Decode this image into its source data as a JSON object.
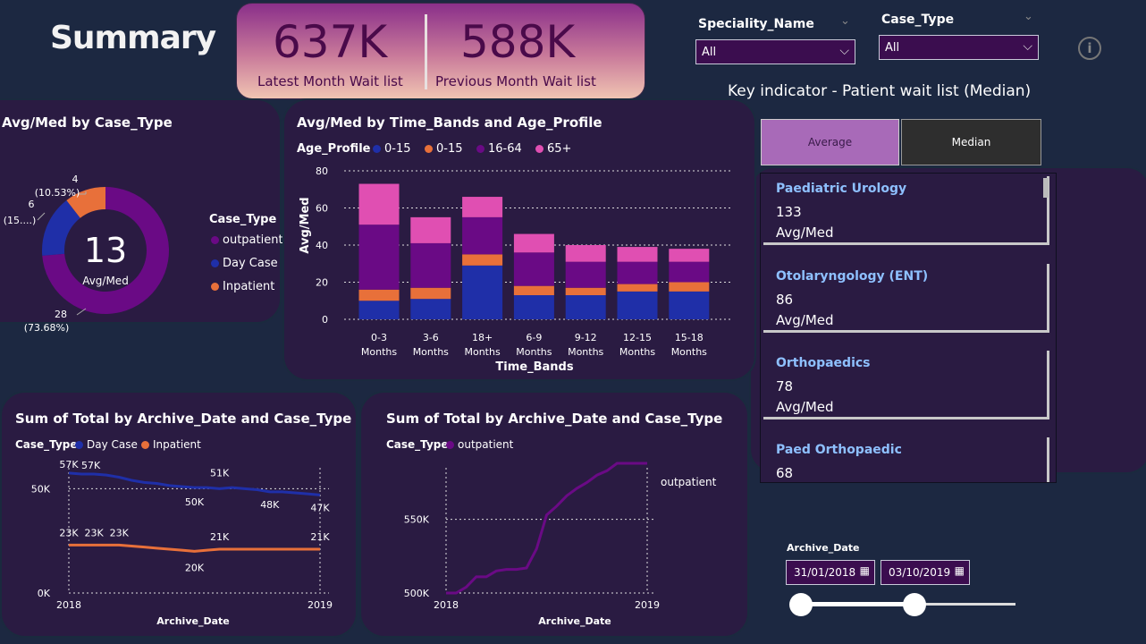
{
  "page": {
    "title": "Summary"
  },
  "kpi": {
    "latest_value": "637K",
    "latest_label": "Latest Month Wait list",
    "previous_value": "588K",
    "previous_label": "Previous Month Wait list"
  },
  "filters": {
    "speciality": {
      "label": "Speciality_Name",
      "value": "All"
    },
    "case_type": {
      "label": "Case_Type",
      "value": "All"
    }
  },
  "info_icon": "info-icon",
  "key_indicator": {
    "title": "Key indicator - Patient wait list (Median)",
    "buttons": {
      "average": "Average",
      "median": "Median"
    },
    "items": [
      {
        "name": "Paediatric Urology",
        "value": "133",
        "sub": "Avg/Med"
      },
      {
        "name": "Otolaryngology (ENT)",
        "value": "86",
        "sub": "Avg/Med"
      },
      {
        "name": "Orthopaedics",
        "value": "78",
        "sub": "Avg/Med"
      },
      {
        "name": "Paed Orthopaedic",
        "value": "68",
        "sub": "Avg/Med"
      }
    ]
  },
  "donut": {
    "title": "Avg/Med by Case_Type",
    "center_value": "13",
    "center_label": "Avg/Med",
    "legend_title": "Case_Type",
    "labels": {
      "inpatient_value": "4",
      "inpatient_pct": "(10.53%)",
      "daycase_value": "6",
      "daycase_pct": "(15....)",
      "outpatient_value": "28",
      "outpatient_pct": "(73.68%)"
    }
  },
  "bar": {
    "title": "Avg/Med by Time_Bands and Age_Profile",
    "legend_title": "Age_Profile",
    "ylabel": "Avg/Med",
    "xlabel": "Time_Bands",
    "tick_line2": "Months"
  },
  "line1": {
    "title": "Sum of Total by Archive_Date and Case_Type",
    "legend_title": "Case_Type",
    "xlabel": "Archive_Date"
  },
  "line2": {
    "title": "Sum of Total by Archive_Date and Case_Type",
    "legend_title": "Case_Type",
    "xlabel": "Archive_Date",
    "end_label": "outpatient"
  },
  "date_filter": {
    "label": "Archive_Date",
    "start": "31/01/2018",
    "end": "03/10/2019",
    "slider_position": [
      0.0,
      0.53
    ]
  },
  "colors": {
    "outpatient": "#6a0a85",
    "daycase": "#1f2fa8",
    "inpatient": "#e8703a",
    "age65": "#e04fb2",
    "bg": "#1c2841",
    "card": "#2a1b42"
  },
  "chart_data": [
    {
      "type": "pie",
      "categories": [
        "outpatient",
        "Day Case",
        "Inpatient"
      ],
      "values": [
        28,
        6,
        4
      ],
      "percent": [
        73.68,
        15.79,
        10.53
      ],
      "title": "Avg/Med by Case_Type",
      "legend": "right"
    },
    {
      "type": "bar",
      "stacked": true,
      "categories": [
        "0-3",
        "3-6",
        "18+",
        "6-9",
        "9-12",
        "12-15",
        "15-18"
      ],
      "series": [
        {
          "name": "0-15",
          "values": [
            10,
            11,
            29,
            13,
            13,
            15,
            15
          ]
        },
        {
          "name": "0-15",
          "values": [
            6,
            6,
            6,
            5,
            4,
            4,
            5
          ]
        },
        {
          "name": "16-64",
          "values": [
            35,
            24,
            20,
            18,
            14,
            12,
            11
          ]
        },
        {
          "name": "65+",
          "values": [
            22,
            14,
            11,
            10,
            9,
            8,
            7
          ]
        }
      ],
      "ylim": [
        0,
        80
      ],
      "yticks": [
        0,
        20,
        40,
        60,
        80
      ],
      "title": "Avg/Med by Time_Bands and Age_Profile",
      "xlabel": "Time_Bands",
      "ylabel": "Avg/Med",
      "grid": true,
      "legend": "top-left"
    },
    {
      "type": "line",
      "title": "Sum of Total by Archive_Date and Case_Type",
      "x": [
        0,
        1,
        2,
        3,
        4,
        5,
        6,
        7,
        8,
        9,
        10,
        11,
        12,
        13,
        14,
        15,
        16,
        17,
        18,
        19,
        20
      ],
      "xticks": [
        "2018",
        "2019"
      ],
      "yticks": [
        "0K",
        "50K"
      ],
      "ylim": [
        0,
        60000
      ],
      "series": [
        {
          "name": "Day Case",
          "values": [
            57500,
            57000,
            57000,
            56500,
            55500,
            54000,
            53000,
            52500,
            51500,
            51000,
            50500,
            50500,
            50000,
            50500,
            50000,
            49500,
            48500,
            48500,
            48000,
            47500,
            47000
          ]
        },
        {
          "name": "Inpatient",
          "values": [
            23000,
            23000,
            23000,
            23000,
            23000,
            22500,
            22000,
            21500,
            21000,
            20500,
            20000,
            20500,
            21000,
            21000,
            21000,
            21000,
            21000,
            21000,
            21000,
            21000,
            21000
          ]
        }
      ],
      "data_labels": [
        {
          "series": "Day Case",
          "label": "57K"
        },
        {
          "series": "Day Case",
          "label": "57K"
        },
        {
          "series": "Day Case",
          "label": "51K"
        },
        {
          "series": "Day Case",
          "label": "50K"
        },
        {
          "series": "Day Case",
          "label": "48K"
        },
        {
          "series": "Day Case",
          "label": "47K"
        },
        {
          "series": "Inpatient",
          "label": "23K"
        },
        {
          "series": "Inpatient",
          "label": "23K"
        },
        {
          "series": "Inpatient",
          "label": "23K"
        },
        {
          "series": "Inpatient",
          "label": "20K"
        },
        {
          "series": "Inpatient",
          "label": "21K"
        },
        {
          "series": "Inpatient",
          "label": "21K"
        }
      ],
      "xlabel": "Archive_Date",
      "grid": true
    },
    {
      "type": "line",
      "title": "Sum of Total by Archive_Date and Case_Type",
      "x": [
        0,
        1,
        2,
        3,
        4,
        5,
        6,
        7,
        8,
        9,
        10,
        11,
        12,
        13,
        14,
        15,
        16,
        17,
        18,
        19,
        20
      ],
      "xticks": [
        "2018",
        "2019"
      ],
      "yticks": [
        "500K",
        "550K"
      ],
      "ylim": [
        500000,
        585000
      ],
      "series": [
        {
          "name": "outpatient",
          "values": [
            500000,
            500000,
            504000,
            511000,
            511000,
            515000,
            516000,
            516000,
            517000,
            530000,
            553000,
            559000,
            566000,
            571000,
            575000,
            580000,
            583000,
            588000,
            588000,
            588000,
            588000
          ]
        }
      ],
      "xlabel": "Archive_Date",
      "grid": true
    }
  ]
}
